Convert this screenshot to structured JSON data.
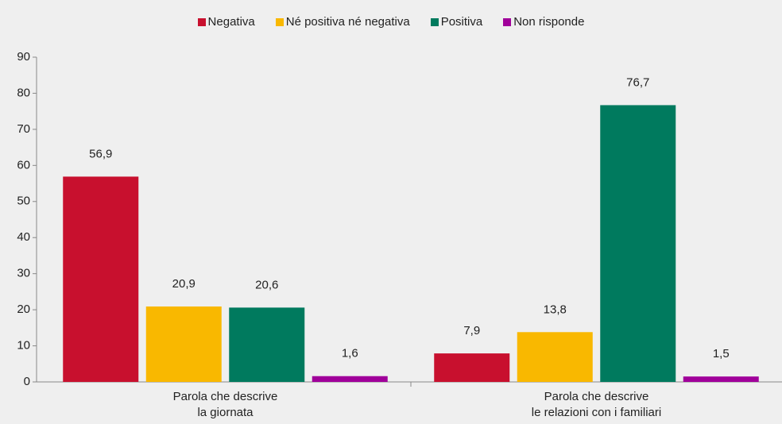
{
  "chart_data": {
    "type": "bar",
    "categories": [
      "Parola che descrive\nla giornata",
      "Parola che descrive\nle relazioni con i familiari"
    ],
    "series": [
      {
        "name": "Negativa",
        "color": "#c8102e",
        "values": [
          56.9,
          7.9
        ],
        "value_labels": [
          "56,9",
          "7,9"
        ]
      },
      {
        "name": "Né positiva né negativa",
        "color": "#f9b800",
        "values": [
          20.9,
          13.8
        ],
        "value_labels": [
          "20,9",
          "13,8"
        ]
      },
      {
        "name": "Positiva",
        "color": "#007a5e",
        "values": [
          20.6,
          76.7
        ],
        "value_labels": [
          "20,6",
          "76,7"
        ]
      },
      {
        "name": "Non risponde",
        "color": "#a0009a",
        "values": [
          1.6,
          1.5
        ],
        "value_labels": [
          "1,6",
          "1,5"
        ]
      }
    ],
    "ylim": [
      0,
      90
    ],
    "yticks": [
      0,
      10,
      20,
      30,
      40,
      50,
      60,
      70,
      80,
      90
    ],
    "legend": "top"
  }
}
